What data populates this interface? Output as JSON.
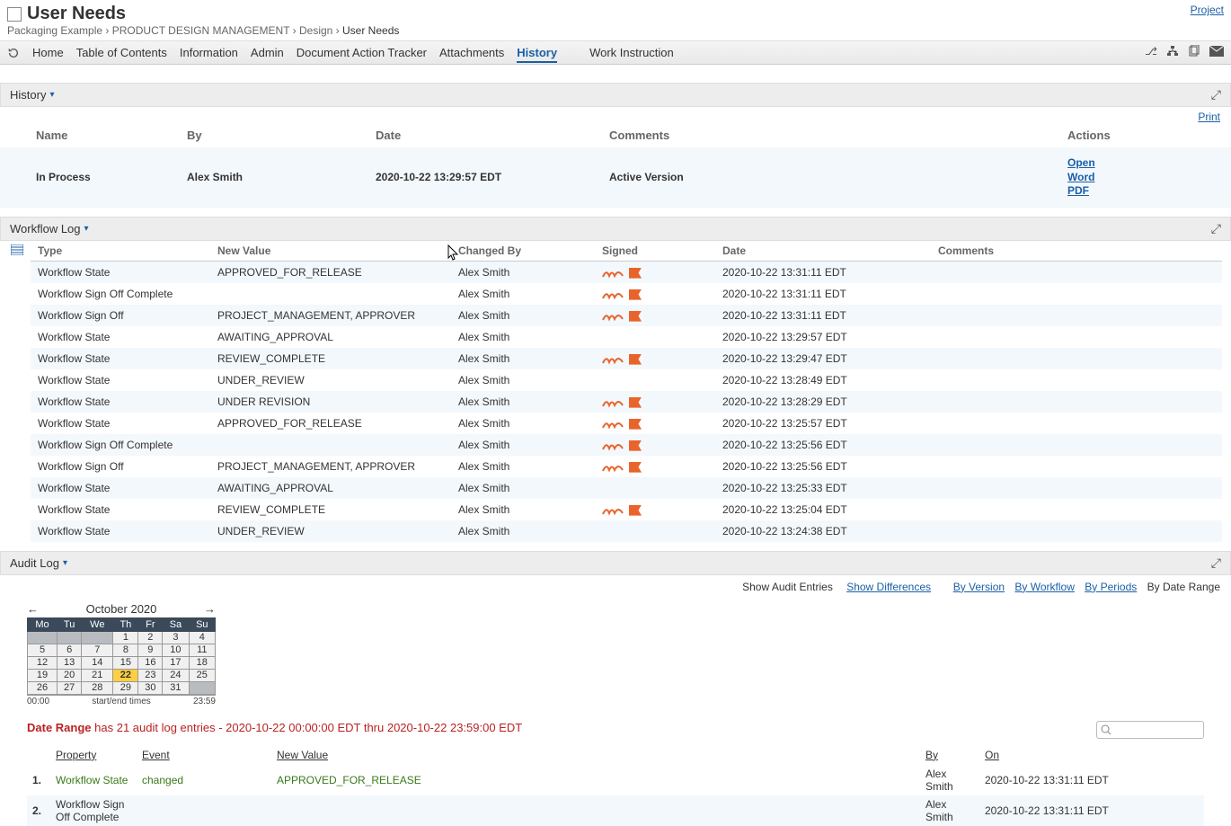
{
  "header": {
    "title": "User Needs",
    "project_link": "Project",
    "breadcrumb": [
      "Packaging Example",
      "PRODUCT DESIGN MANAGEMENT",
      "Design",
      "User Needs"
    ]
  },
  "tabs": {
    "items": [
      "Home",
      "Table of Contents",
      "Information",
      "Admin",
      "Document Action Tracker",
      "Attachments",
      "History",
      "Work Instruction"
    ],
    "active": "History"
  },
  "history_section": {
    "title": "History",
    "print": "Print",
    "columns": [
      "Name",
      "By",
      "Date",
      "Comments",
      "Actions"
    ],
    "row": {
      "name": "In Process",
      "by": "Alex Smith",
      "date": "2020-10-22 13:29:57 EDT",
      "comments": "Active Version",
      "actions": [
        "Open",
        "Word",
        "PDF"
      ]
    }
  },
  "workflow_section": {
    "title": "Workflow Log",
    "columns": [
      "Type",
      "New Value",
      "Changed By",
      "Signed",
      "Date",
      "Comments"
    ],
    "rows": [
      {
        "type": "Workflow State",
        "value": "APPROVED_FOR_RELEASE",
        "by": "Alex Smith",
        "signed": true,
        "date": "2020-10-22 13:31:11 EDT",
        "comments": ""
      },
      {
        "type": "Workflow Sign Off Complete",
        "value": "",
        "by": "Alex Smith",
        "signed": true,
        "date": "2020-10-22 13:31:11 EDT",
        "comments": ""
      },
      {
        "type": "Workflow Sign Off",
        "value": "PROJECT_MANAGEMENT, APPROVER",
        "by": "Alex Smith",
        "signed": true,
        "date": "2020-10-22 13:31:11 EDT",
        "comments": ""
      },
      {
        "type": "Workflow State",
        "value": "AWAITING_APPROVAL",
        "by": "Alex Smith",
        "signed": false,
        "date": "2020-10-22 13:29:57 EDT",
        "comments": ""
      },
      {
        "type": "Workflow State",
        "value": "REVIEW_COMPLETE",
        "by": "Alex Smith",
        "signed": true,
        "date": "2020-10-22 13:29:47 EDT",
        "comments": ""
      },
      {
        "type": "Workflow State",
        "value": "UNDER_REVIEW",
        "by": "Alex Smith",
        "signed": false,
        "date": "2020-10-22 13:28:49 EDT",
        "comments": ""
      },
      {
        "type": "Workflow State",
        "value": "UNDER REVISION",
        "by": "Alex Smith",
        "signed": true,
        "date": "2020-10-22 13:28:29 EDT",
        "comments": ""
      },
      {
        "type": "Workflow State",
        "value": "APPROVED_FOR_RELEASE",
        "by": "Alex Smith",
        "signed": true,
        "date": "2020-10-22 13:25:57 EDT",
        "comments": ""
      },
      {
        "type": "Workflow Sign Off Complete",
        "value": "",
        "by": "Alex Smith",
        "signed": true,
        "date": "2020-10-22 13:25:56 EDT",
        "comments": ""
      },
      {
        "type": "Workflow Sign Off",
        "value": "PROJECT_MANAGEMENT, APPROVER",
        "by": "Alex Smith",
        "signed": true,
        "date": "2020-10-22 13:25:56 EDT",
        "comments": ""
      },
      {
        "type": "Workflow State",
        "value": "AWAITING_APPROVAL",
        "by": "Alex Smith",
        "signed": false,
        "date": "2020-10-22 13:25:33 EDT",
        "comments": ""
      },
      {
        "type": "Workflow State",
        "value": "REVIEW_COMPLETE",
        "by": "Alex Smith",
        "signed": true,
        "date": "2020-10-22 13:25:04 EDT",
        "comments": ""
      },
      {
        "type": "Workflow State",
        "value": "UNDER_REVIEW",
        "by": "Alex Smith",
        "signed": false,
        "date": "2020-10-22 13:24:38 EDT",
        "comments": ""
      }
    ]
  },
  "audit_section": {
    "title": "Audit Log",
    "show_label": "Show Audit Entries",
    "links": [
      "Show Differences",
      "By Version",
      "By Workflow",
      "By Periods"
    ],
    "current_mode": "By Date Range"
  },
  "calendar": {
    "month_label": "October 2020",
    "prev": "←",
    "next": "→",
    "dow": [
      "Mo",
      "Tu",
      "We",
      "Th",
      "Fr",
      "Sa",
      "Su"
    ],
    "lead_blanks": 3,
    "days": 31,
    "selected": 22,
    "time_start": "00:00",
    "time_mid": "start/end times",
    "time_end": "23:59"
  },
  "range": {
    "label": "Date Range",
    "text": "has 21 audit log entries - 2020-10-22 00:00:00 EDT thru 2020-10-22 23:59:00 EDT"
  },
  "audit_entries": {
    "columns": [
      "",
      "Property",
      "Event",
      "New Value",
      "By",
      "On"
    ],
    "rows": [
      {
        "idx": "1.",
        "property": "Workflow State",
        "event": "changed",
        "value": "APPROVED_FOR_RELEASE",
        "by": "Alex Smith",
        "on": "2020-10-22 13:31:11 EDT",
        "green": true
      },
      {
        "idx": "2.",
        "property": "Workflow Sign Off Complete",
        "event": "",
        "value": "",
        "by": "Alex Smith",
        "on": "2020-10-22 13:31:11 EDT",
        "green": false
      }
    ]
  },
  "colors": {
    "link": "#1a5fa5",
    "stripe": "#f3f8fc",
    "section_bg": "#ededed",
    "accent_orange": "#e9642a",
    "danger": "#b22222",
    "green": "#3a7a1a",
    "cal_header": "#3b4a5a",
    "cal_sel": "#ffcf3f"
  }
}
